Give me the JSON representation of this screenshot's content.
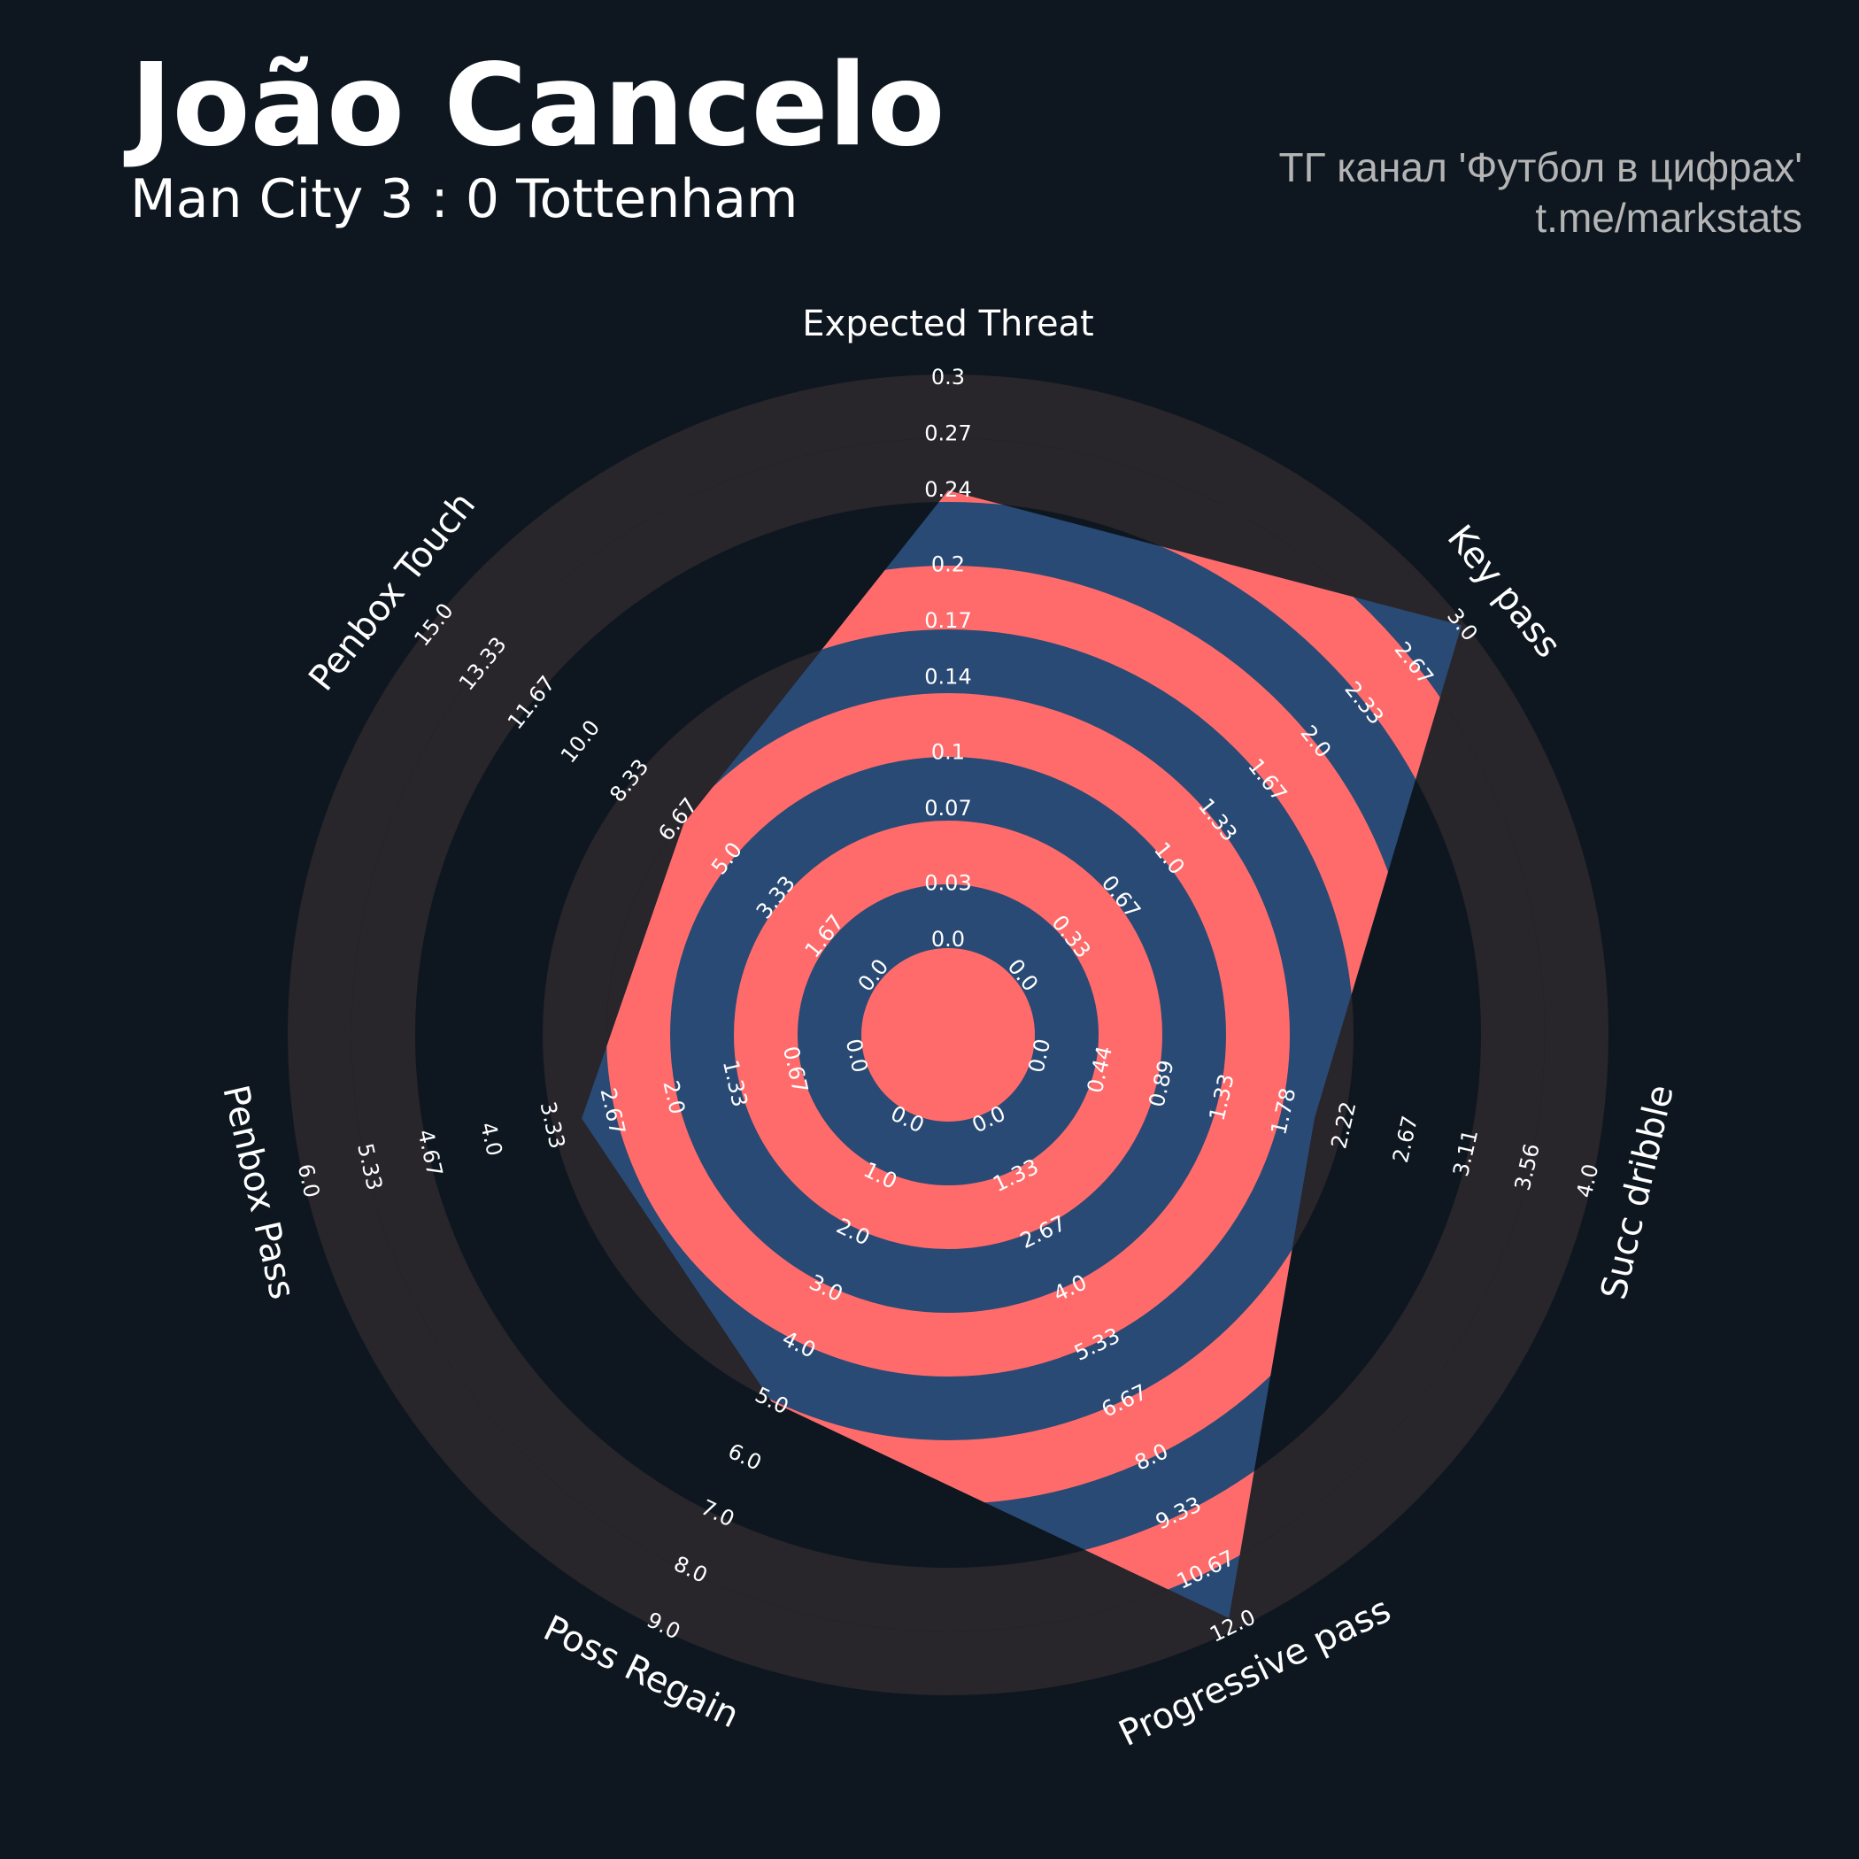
{
  "chart_data": {
    "type": "radar",
    "title": "João Cancelo",
    "subtitle": "Man City 3 : 0 Tottenham",
    "credits": [
      "ТГ канал 'Футбол в цифрах'",
      "t.me/markstats"
    ],
    "params": [
      "Expected Threat",
      "Key pass",
      "Succ dribble",
      "Progressive pass",
      "Poss Regain",
      "Penbox Pass",
      "Penbox Touch"
    ],
    "ranges": [
      [
        0,
        0.3
      ],
      [
        0,
        3
      ],
      [
        0,
        4
      ],
      [
        0,
        12
      ],
      [
        0,
        9
      ],
      [
        0,
        6
      ],
      [
        0,
        15
      ]
    ],
    "values": [
      0.24,
      3,
      2,
      11.8,
      5,
      3,
      6.5
    ],
    "ticks": [
      [
        {
          "value": 0,
          "label": "0.0"
        },
        0.03,
        0.07,
        0.1,
        0.14,
        0.17,
        0.2,
        0.24,
        0.27,
        0.3
      ],
      [
        {
          "value": 0,
          "label": "0.0"
        },
        0.33,
        0.67,
        {
          "value": 1,
          "label": "1.0"
        },
        1.33,
        1.67,
        {
          "value": 2,
          "label": "2.0"
        },
        2.33,
        2.67,
        {
          "value": 3,
          "label": "3.0"
        }
      ],
      [
        {
          "value": 0,
          "label": "0.0"
        },
        0.44,
        0.89,
        1.33,
        1.78,
        2.22,
        2.67,
        3.11,
        3.56,
        {
          "value": 4,
          "label": "4.0"
        }
      ],
      [
        {
          "value": 0,
          "label": "0.0"
        },
        1.33,
        2.67,
        {
          "value": 4,
          "label": "4.0"
        },
        5.33,
        6.67,
        {
          "value": 8,
          "label": "8.0"
        },
        9.33,
        10.67,
        {
          "value": 12,
          "label": "12.0"
        }
      ],
      [
        {
          "value": 0,
          "label": "0.0"
        },
        {
          "value": 1,
          "label": "1.0"
        },
        {
          "value": 2,
          "label": "2.0"
        },
        {
          "value": 3,
          "label": "3.0"
        },
        {
          "value": 4,
          "label": "4.0"
        },
        {
          "value": 5,
          "label": "5.0"
        },
        {
          "value": 6,
          "label": "6.0"
        },
        {
          "value": 7,
          "label": "7.0"
        },
        {
          "value": 8,
          "label": "8.0"
        },
        {
          "value": 9,
          "label": "9.0"
        }
      ],
      [
        {
          "value": 0,
          "label": "0.0"
        },
        0.67,
        1.33,
        {
          "value": 2,
          "label": "2.0"
        },
        2.67,
        3.33,
        {
          "value": 4,
          "label": "4.0"
        },
        4.67,
        5.33,
        {
          "value": 6,
          "label": "6.0"
        }
      ],
      [
        {
          "value": 0,
          "label": "0.0"
        },
        1.67,
        3.33,
        {
          "value": 5,
          "label": "5.0"
        },
        6.67,
        8.33,
        {
          "value": 10,
          "label": "10.0"
        },
        11.67,
        13.33,
        {
          "value": 15,
          "label": "15.0"
        }
      ]
    ],
    "color": "#284a74",
    "ring_color": "#ff6b6b",
    "background_ring_color": "#28252b"
  }
}
